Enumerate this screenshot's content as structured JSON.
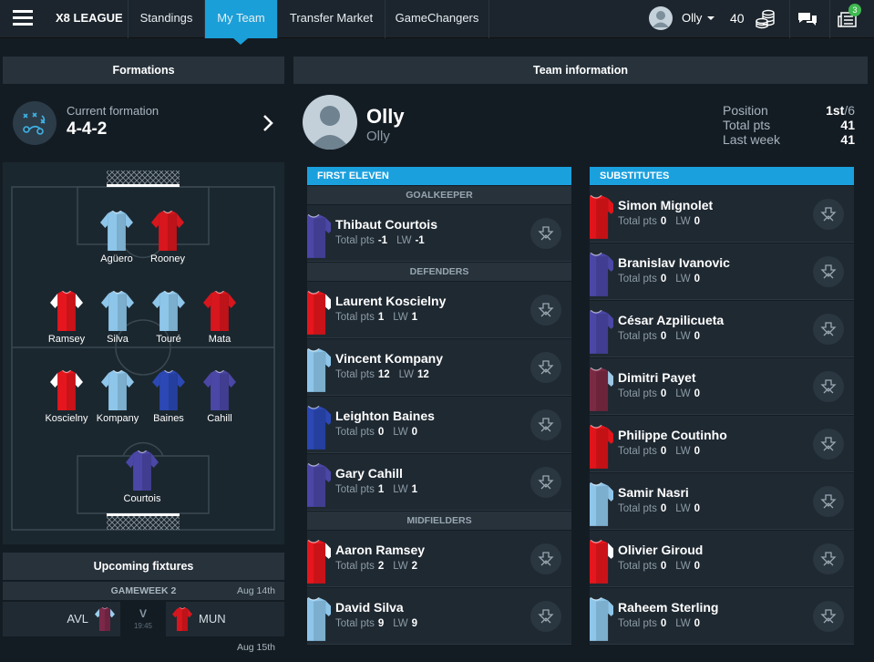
{
  "nav": {
    "brand": "X8 LEAGUE",
    "tabs": [
      "Standings",
      "My Team",
      "Transfer Market",
      "GameChangers"
    ],
    "active_tab": 1,
    "user": "Olly",
    "coins": 40,
    "notifications": 3
  },
  "formations": {
    "title": "Formations",
    "current_label": "Current formation",
    "current": "4-4-2",
    "pitch": [
      {
        "name": "Agüero",
        "kit": "#8ec6ea"
      },
      {
        "name": "Rooney",
        "kit": "#d8161d"
      },
      {
        "name": "Ramsey",
        "kit": "#e5161d",
        "sleeve": "#ffffff"
      },
      {
        "name": "Silva",
        "kit": "#8ec6ea"
      },
      {
        "name": "Touré",
        "kit": "#8ec6ea"
      },
      {
        "name": "Mata",
        "kit": "#d8161d"
      },
      {
        "name": "Koscielny",
        "kit": "#e5161d",
        "sleeve": "#ffffff"
      },
      {
        "name": "Kompany",
        "kit": "#8ec6ea"
      },
      {
        "name": "Baines",
        "kit": "#2b48b4"
      },
      {
        "name": "Cahill",
        "kit": "#4b47a6"
      },
      {
        "name": "Courtois",
        "kit": "#4b47a6"
      }
    ]
  },
  "fixtures": {
    "title": "Upcoming fixtures",
    "gameweek": "GAMEWEEK 2",
    "groups": [
      {
        "date": "Aug 14th",
        "matches": [
          {
            "home": "AVL",
            "home_kit": "#7c2848",
            "home_sleeve": "#9ad0ee",
            "vs": "V",
            "time": "19:45",
            "away": "MUN",
            "away_kit": "#d8161d"
          }
        ]
      },
      {
        "date": "Aug 15th"
      }
    ]
  },
  "team_info": {
    "title": "Team information",
    "manager": "Olly",
    "team": "Olly",
    "stats": [
      {
        "label": "Position",
        "value": "1st",
        "suffix": "/6"
      },
      {
        "label": "Total pts",
        "value": 41
      },
      {
        "label": "Last week",
        "value": 41
      }
    ]
  },
  "labels": {
    "total_pts": "Total pts",
    "lw": "LW"
  },
  "first_eleven": {
    "title": "FIRST ELEVEN",
    "sections": [
      {
        "title": "GOALKEEPER",
        "players": [
          {
            "name": "Thibaut Courtois",
            "total": -1,
            "lw": -1,
            "kit": "#4b47a6"
          }
        ]
      },
      {
        "title": "DEFENDERS",
        "players": [
          {
            "name": "Laurent Koscielny",
            "total": 1,
            "lw": 1,
            "kit": "#e5161d",
            "sleeve": "#ffffff"
          },
          {
            "name": "Vincent Kompany",
            "total": 12,
            "lw": 12,
            "kit": "#8ec6ea"
          },
          {
            "name": "Leighton Baines",
            "total": 0,
            "lw": 0,
            "kit": "#2b48b4"
          },
          {
            "name": "Gary Cahill",
            "total": 1,
            "lw": 1,
            "kit": "#4b47a6"
          }
        ]
      },
      {
        "title": "MIDFIELDERS",
        "players": [
          {
            "name": "Aaron Ramsey",
            "total": 2,
            "lw": 2,
            "kit": "#e5161d",
            "sleeve": "#ffffff"
          },
          {
            "name": "David Silva",
            "total": 9,
            "lw": 9,
            "kit": "#8ec6ea"
          }
        ]
      }
    ]
  },
  "substitutes": {
    "title": "SUBSTITUTES",
    "players": [
      {
        "name": "Simon Mignolet",
        "total": 0,
        "lw": 0,
        "kit": "#e0141a"
      },
      {
        "name": "Branislav Ivanovic",
        "total": 0,
        "lw": 0,
        "kit": "#4b47a6"
      },
      {
        "name": "César Azpilicueta",
        "total": 0,
        "lw": 0,
        "kit": "#4b47a6"
      },
      {
        "name": "Dimitri Payet",
        "total": 0,
        "lw": 0,
        "kit": "#7b2a44",
        "sleeve": "#9cc8e6"
      },
      {
        "name": "Philippe Coutinho",
        "total": 0,
        "lw": 0,
        "kit": "#e0141a"
      },
      {
        "name": "Samir Nasri",
        "total": 0,
        "lw": 0,
        "kit": "#8ec6ea"
      },
      {
        "name": "Olivier Giroud",
        "total": 0,
        "lw": 0,
        "kit": "#e5161d",
        "sleeve": "#ffffff"
      },
      {
        "name": "Raheem Sterling",
        "total": 0,
        "lw": 0,
        "kit": "#8ec6ea"
      }
    ]
  }
}
